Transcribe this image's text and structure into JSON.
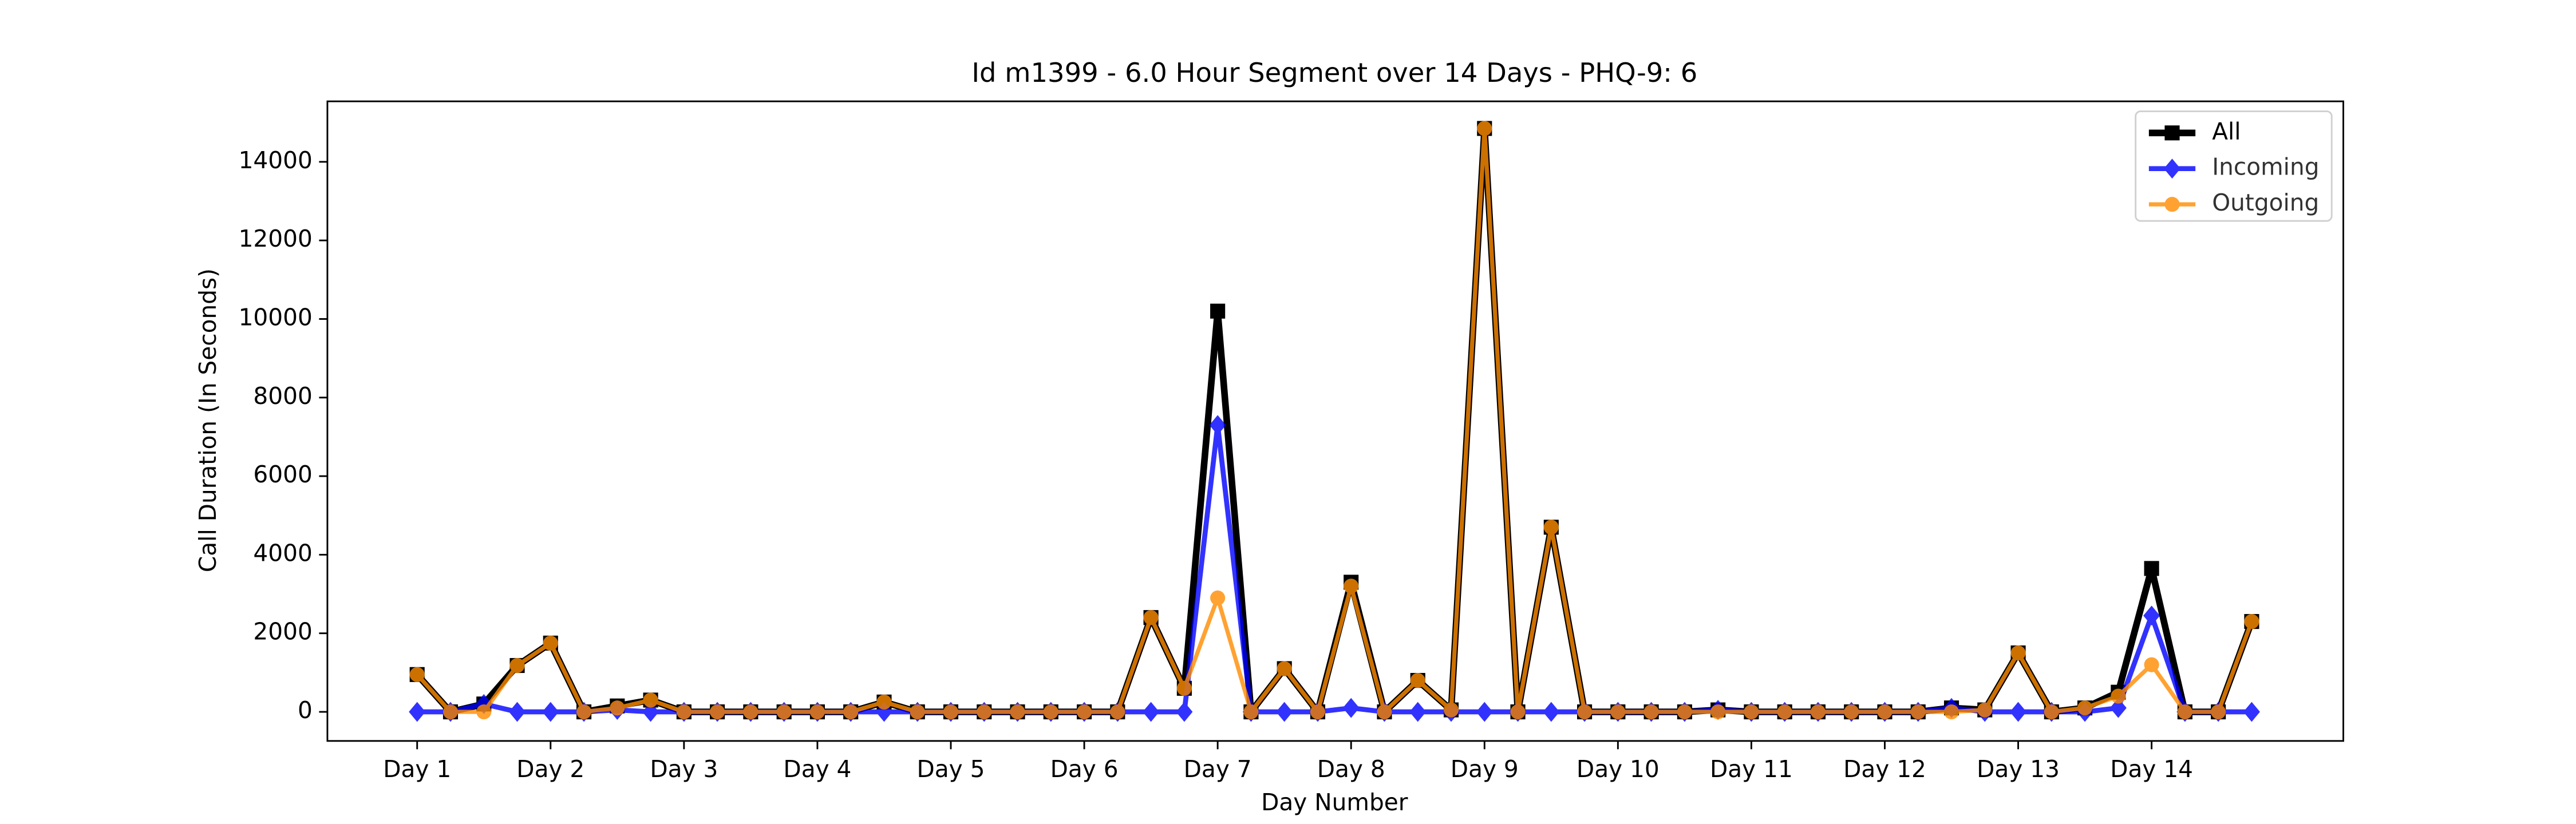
{
  "chart_data": {
    "type": "line",
    "title": "Id m1399 - 6.0 Hour Segment over 14 Days - PHQ-9: 6",
    "x_label": "Day Number",
    "y_label": "Call Duration (In Seconds)",
    "categories": [
      "Day 1",
      null,
      null,
      null,
      "Day 2",
      null,
      null,
      null,
      "Day 3",
      null,
      null,
      null,
      "Day 4",
      null,
      null,
      null,
      "Day 5",
      null,
      null,
      null,
      "Day 6",
      null,
      null,
      null,
      "Day 7",
      null,
      null,
      null,
      "Day 8",
      null,
      null,
      null,
      "Day 9",
      null,
      null,
      null,
      "Day 10",
      null,
      null,
      null,
      "Day 11",
      null,
      null,
      null,
      "Day 12",
      null,
      null,
      null,
      "Day 13",
      null,
      null,
      null,
      "Day 14",
      null,
      null,
      null
    ],
    "series": [
      {
        "name": "All",
        "color": "#000000",
        "marker": "square",
        "values": [
          950,
          0,
          200,
          1180,
          1750,
          0,
          150,
          300,
          0,
          0,
          0,
          0,
          0,
          0,
          250,
          0,
          0,
          0,
          0,
          0,
          0,
          0,
          2400,
          600,
          10200,
          0,
          1100,
          0,
          3300,
          0,
          800,
          50,
          14850,
          0,
          4700,
          0,
          0,
          0,
          0,
          50,
          0,
          0,
          0,
          0,
          0,
          0,
          100,
          50,
          1500,
          0,
          100,
          500,
          3650,
          0,
          0,
          2300
        ]
      },
      {
        "name": "Incoming",
        "color": "#0000ff",
        "marker": "diamond",
        "values": [
          0,
          0,
          200,
          0,
          0,
          0,
          50,
          0,
          0,
          0,
          0,
          0,
          0,
          0,
          0,
          0,
          0,
          0,
          0,
          0,
          0,
          0,
          0,
          0,
          7300,
          0,
          0,
          0,
          100,
          0,
          0,
          0,
          0,
          0,
          0,
          0,
          0,
          0,
          0,
          50,
          0,
          0,
          0,
          0,
          0,
          0,
          100,
          0,
          0,
          0,
          0,
          100,
          2450,
          0,
          0,
          0
        ]
      },
      {
        "name": "Outgoing",
        "color": "#ff8c00",
        "marker": "circle",
        "values": [
          950,
          0,
          0,
          1180,
          1750,
          0,
          100,
          300,
          0,
          0,
          0,
          0,
          0,
          0,
          250,
          0,
          0,
          0,
          0,
          0,
          0,
          0,
          2400,
          600,
          2900,
          0,
          1100,
          0,
          3200,
          0,
          800,
          50,
          14850,
          0,
          4700,
          0,
          0,
          0,
          0,
          0,
          0,
          0,
          0,
          0,
          0,
          0,
          0,
          50,
          1500,
          0,
          100,
          400,
          1200,
          0,
          0,
          2300
        ]
      }
    ],
    "ylim": [
      -740,
      15540
    ],
    "yticks": [
      0,
      2000,
      4000,
      6000,
      8000,
      10000,
      12000,
      14000
    ],
    "legend": "upper right"
  }
}
